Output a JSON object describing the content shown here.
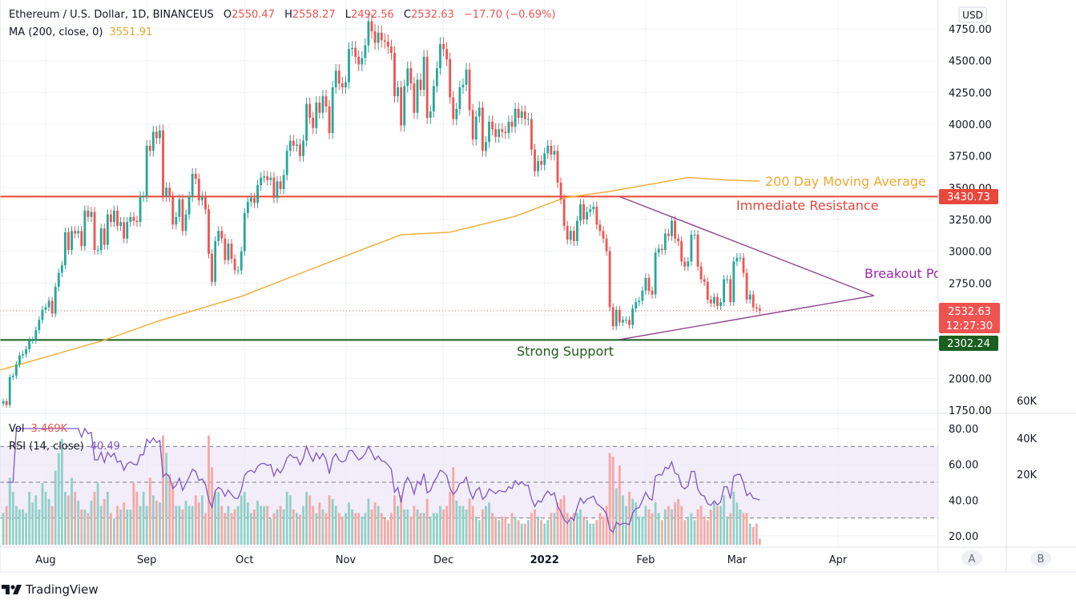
{
  "header": {
    "symbol": "Ethereum / U.S. Dollar, 1D, BINANCEUS",
    "o_label": "O",
    "o_value": "2550.47",
    "h_label": "H",
    "h_value": "2558.27",
    "l_label": "L",
    "l_value": "2492.56",
    "c_label": "C",
    "c_value": "2532.63",
    "change": "−17.70 (−0.69%)",
    "ma_label": "MA (200, close, 0)",
    "ma_value": "3551.91"
  },
  "lower_legend": {
    "vol_label": "Vol",
    "vol_value": "3.469K",
    "rsi_label": "RSI (14, close)",
    "rsi_value": "40.49"
  },
  "price_axis": {
    "currency": "USD",
    "ticks": [
      "4750.00",
      "4500.00",
      "4250.00",
      "4000.00",
      "3750.00",
      "3500.00",
      "3250.00",
      "3000.00",
      "2750.00",
      "2000.00",
      "1750.00"
    ],
    "tick_values": [
      4750,
      4500,
      4250,
      4000,
      3750,
      3500,
      3250,
      3000,
      2750,
      2000,
      1750
    ],
    "resistance_label": "3430.73",
    "last_price_label": "2532.63",
    "countdown": "12:27:30",
    "support_label": "2302.24"
  },
  "rsi_axis": {
    "ticks": [
      "80.00",
      "60.00",
      "40.00",
      "20.00"
    ],
    "tick_values": [
      80,
      60,
      40,
      20
    ]
  },
  "volume_axis": {
    "ticks": [
      "60K",
      "40K",
      "20K"
    ],
    "tick_values": [
      60,
      40,
      20
    ]
  },
  "time_axis": {
    "labels": [
      {
        "text": "Aug",
        "date": "2021-08-01"
      },
      {
        "text": "Sep",
        "date": "2021-09-01"
      },
      {
        "text": "Oct",
        "date": "2021-10-01"
      },
      {
        "text": "Nov",
        "date": "2021-11-01"
      },
      {
        "text": "Dec",
        "date": "2021-12-01"
      },
      {
        "text": "2022",
        "date": "2022-01-01",
        "bold": true
      },
      {
        "text": "Feb",
        "date": "2022-02-01"
      },
      {
        "text": "Mar",
        "date": "2022-03-01"
      },
      {
        "text": "Apr",
        "date": "2022-04-01"
      }
    ]
  },
  "scale_buttons": {
    "a": "A",
    "b": "B"
  },
  "brand": "TradingView",
  "colors": {
    "up": "#26a69a",
    "down": "#ef5350",
    "ma": "#f0b03c",
    "resistance": "#e8473b",
    "support": "#1b5e20",
    "triangle": "#8b3a87",
    "breakout": "#9c27b0",
    "rsi": "#7e57c2"
  },
  "annotations": {
    "ma_text": "200 Day Moving Average",
    "resistance_text": "Immediate Resistance",
    "support_text": "Strong Support",
    "breakout_text": "Breakout Po"
  },
  "chart_data": {
    "type": "candlestick",
    "interval": "1D",
    "ylim": [
      1750,
      4750
    ],
    "rsi_ylim": [
      20,
      80
    ],
    "rsi_bands": [
      30,
      50,
      70
    ],
    "grid": true,
    "resistance": 3430.73,
    "support": 2302.24,
    "last_close": 2532.63,
    "months": [
      {
        "month": "2021-07",
        "first_day": 19,
        "close": [
          1820,
          1790,
          2010,
          2020,
          2110,
          2180,
          2190,
          2230,
          2300,
          2300,
          2380,
          2460,
          2540
        ],
        "volume_k": [
          18,
          22,
          38,
          30,
          22,
          20,
          20,
          18,
          30,
          24,
          28,
          20,
          35
        ]
      },
      {
        "month": "2021-08",
        "first_day": 1,
        "close": [
          2560,
          2610,
          2510,
          2720,
          2830,
          2890,
          3150,
          3010,
          3160,
          3140,
          3160,
          3040,
          3320,
          3270,
          3310,
          3010,
          3010,
          3180,
          3050,
          3290,
          3230,
          3320,
          3200,
          3230,
          3100,
          3230,
          3270,
          3240,
          3230,
          3430,
          3430
        ],
        "volume_k": [
          30,
          26,
          22,
          42,
          52,
          60,
          30,
          28,
          38,
          30,
          25,
          20,
          20,
          18,
          25,
          30,
          35,
          22,
          26,
          30,
          18,
          15,
          22,
          20,
          24,
          20,
          20,
          35,
          30,
          22,
          30
        ]
      },
      {
        "month": "2021-09",
        "first_day": 1,
        "close": [
          3830,
          3790,
          3940,
          3890,
          3950,
          3430,
          3500,
          3430,
          3210,
          3270,
          3410,
          3160,
          3290,
          3430,
          3610,
          3570,
          3400,
          3430,
          3330,
          2980,
          2760,
          3080,
          3160,
          3100,
          2930,
          3060,
          2940,
          2850,
          2850,
          3000
        ],
        "volume_k": [
          22,
          38,
          28,
          25,
          24,
          62,
          52,
          40,
          35,
          22,
          22,
          20,
          25,
          22,
          22,
          28,
          24,
          28,
          18,
          62,
          44,
          30,
          30,
          22,
          18,
          22,
          18,
          20,
          22,
          28
        ]
      },
      {
        "month": "2021-10",
        "first_day": 1,
        "close": [
          3300,
          3390,
          3420,
          3380,
          3520,
          3580,
          3590,
          3560,
          3580,
          3420,
          3550,
          3490,
          3600,
          3790,
          3870,
          3830,
          3840,
          3750,
          3870,
          4160,
          4050,
          3970,
          4170,
          4090,
          4220,
          4140,
          3930,
          4290,
          4420,
          4320,
          4290
        ],
        "volume_k": [
          30,
          24,
          18,
          20,
          25,
          22,
          22,
          22,
          15,
          18,
          20,
          22,
          20,
          30,
          28,
          20,
          18,
          17,
          22,
          30,
          28,
          22,
          18,
          24,
          20,
          18,
          28,
          26,
          22,
          18,
          16
        ]
      },
      {
        "month": "2021-11",
        "first_day": 1,
        "close": [
          4330,
          4590,
          4600,
          4530,
          4470,
          4520,
          4620,
          4810,
          4730,
          4640,
          4720,
          4660,
          4650,
          4610,
          4560,
          4220,
          4290,
          3990,
          4300,
          4440,
          4320,
          4090,
          4350,
          4270,
          4530,
          4050,
          4100,
          4300,
          4440,
          4630
        ],
        "volume_k": [
          18,
          24,
          20,
          18,
          18,
          16,
          18,
          26,
          20,
          24,
          22,
          18,
          15,
          14,
          18,
          28,
          22,
          28,
          20,
          20,
          16,
          22,
          20,
          18,
          18,
          26,
          16,
          18,
          18,
          22
        ]
      },
      {
        "month": "2021-12",
        "first_day": 1,
        "close": [
          4590,
          4510,
          4210,
          4040,
          4120,
          4290,
          4310,
          4430,
          4110,
          3880,
          4060,
          4130,
          3790,
          3860,
          4020,
          3960,
          3900,
          3960,
          3940,
          3930,
          4020,
          3980,
          4120,
          4050,
          4100,
          4040,
          4040,
          3800,
          3630,
          3710,
          3680
        ],
        "volume_k": [
          20,
          22,
          30,
          44,
          25,
          22,
          22,
          20,
          26,
          22,
          16,
          14,
          20,
          22,
          24,
          18,
          16,
          14,
          16,
          16,
          12,
          18,
          16,
          14,
          12,
          12,
          14,
          18,
          20,
          16,
          14
        ]
      },
      {
        "month": "2022-01",
        "first_day": 1,
        "close": [
          3770,
          3830,
          3760,
          3790,
          3540,
          3410,
          3200,
          3090,
          3160,
          3080,
          3240,
          3370,
          3250,
          3310,
          3330,
          3350,
          3210,
          3160,
          3100,
          3000,
          2560,
          2410,
          2540,
          2440,
          2460,
          2460,
          2420,
          2550,
          2600,
          2610,
          2690
        ],
        "volume_k": [
          12,
          14,
          18,
          18,
          24,
          26,
          28,
          18,
          14,
          18,
          18,
          20,
          16,
          14,
          12,
          12,
          14,
          18,
          16,
          22,
          52,
          50,
          32,
          45,
          28,
          22,
          30,
          26,
          24,
          16,
          16
        ]
      },
      {
        "month": "2022-02",
        "first_day": 1,
        "close": [
          2790,
          2690,
          2660,
          2990,
          3020,
          3010,
          3140,
          3120,
          3240,
          3100,
          3080,
          2920,
          2880,
          2920,
          3130,
          3130,
          2880,
          2780,
          2760,
          2620,
          2590,
          2640,
          2570,
          2600,
          2780,
          2780,
          2600,
          2920
        ],
        "volume_k": [
          22,
          20,
          18,
          24,
          18,
          14,
          20,
          22,
          20,
          24,
          26,
          22,
          14,
          16,
          18,
          14,
          20,
          22,
          16,
          14,
          20,
          24,
          22,
          22,
          28,
          16,
          18,
          30
        ]
      },
      {
        "month": "2022-03",
        "first_day": 1,
        "close": [
          2950,
          2950,
          2830,
          2620,
          2660,
          2560,
          2550,
          2532.63
        ],
        "volume_k": [
          24,
          20,
          18,
          18,
          12,
          10,
          12,
          3.469
        ]
      }
    ],
    "ma200": [
      [
        "2021-07-18",
        2065
      ],
      [
        "2021-08-19",
        2300
      ],
      [
        "2021-09-05",
        2455
      ],
      [
        "2021-09-30",
        2645
      ],
      [
        "2021-10-22",
        2865
      ],
      [
        "2021-11-18",
        3130
      ],
      [
        "2021-12-03",
        3150
      ],
      [
        "2021-12-23",
        3275
      ],
      [
        "2022-01-07",
        3420
      ],
      [
        "2022-01-22",
        3475
      ],
      [
        "2022-02-14",
        3580
      ],
      [
        "2022-02-26",
        3560
      ],
      [
        "2022-03-08",
        3551.91
      ]
    ],
    "triangle": {
      "upper": [
        [
          "2022-01-24",
          3430
        ],
        [
          "2022-04-12",
          2651
        ]
      ],
      "lower": [
        [
          "2022-01-24",
          2305
        ],
        [
          "2022-04-12",
          2651
        ]
      ]
    }
  }
}
